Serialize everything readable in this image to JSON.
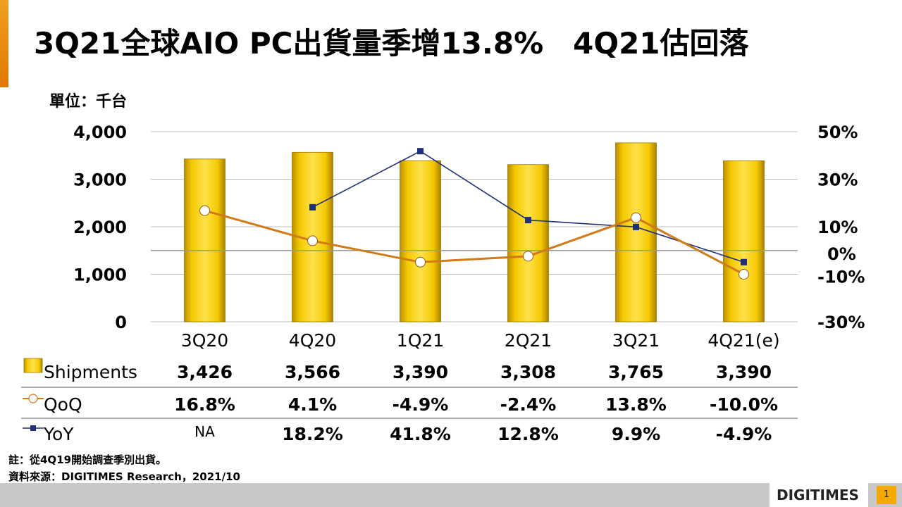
{
  "title": "3Q21全球AIO PC出貨量季增13.8%　4Q21估回落",
  "unit_label": "單位：千台",
  "footnote": "註：從4Q19開始調查季別出貨。",
  "source": "資料來源：DIGITIMES Research，2021/10",
  "logo": "DIGITIMES",
  "page_number": "1",
  "colors": {
    "bar": "#f2c200",
    "qoq_line": "#d07a18",
    "yoy_line": "#1f2f7a",
    "accent": "#f09a10"
  },
  "chart_data": {
    "type": "bar",
    "categories": [
      "3Q20",
      "4Q20",
      "1Q21",
      "2Q21",
      "3Q21",
      "4Q21(e)"
    ],
    "y_left": {
      "ticks": [
        "0",
        "1,000",
        "2,000",
        "3,000",
        "4,000"
      ],
      "range": [
        0,
        4000
      ]
    },
    "y_right": {
      "ticks": [
        "-30%",
        "-10%",
        "0%",
        "10%",
        "30%",
        "50%"
      ],
      "range": [
        -30,
        50
      ]
    },
    "series": [
      {
        "name": "Shipments",
        "axis": "left",
        "type": "bar",
        "values": [
          3426,
          3566,
          3390,
          3308,
          3765,
          3390
        ],
        "labels": [
          "3,426",
          "3,566",
          "3,390",
          "3,308",
          "3,765",
          "3,390"
        ]
      },
      {
        "name": "QoQ",
        "axis": "right",
        "type": "line",
        "values": [
          16.8,
          4.1,
          -4.9,
          -2.4,
          13.8,
          -10.0
        ],
        "labels": [
          "16.8%",
          "4.1%",
          "-4.9%",
          "-2.4%",
          "13.8%",
          "-10.0%"
        ]
      },
      {
        "name": "YoY",
        "axis": "right",
        "type": "line",
        "values": [
          null,
          18.2,
          41.8,
          12.8,
          9.9,
          -4.9
        ],
        "labels": [
          "NA",
          "18.2%",
          "41.8%",
          "12.8%",
          "9.9%",
          "-4.9%"
        ]
      }
    ]
  }
}
